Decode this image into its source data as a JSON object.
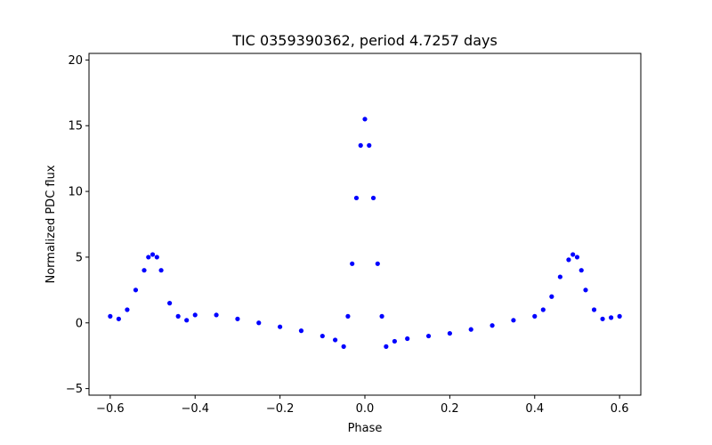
{
  "chart_data": {
    "type": "scatter",
    "title": "TIC 0359390362, period 4.7257 days",
    "xlabel": "Phase",
    "ylabel": "Normalized PDC flux",
    "xlim": [
      -0.65,
      0.65
    ],
    "ylim": [
      -5.5,
      20.5
    ],
    "x_ticks": [
      -0.6,
      -0.4,
      -0.2,
      0.0,
      0.2,
      0.4,
      0.6
    ],
    "x_tick_labels": [
      "−0.6",
      "−0.4",
      "−0.2",
      "0.0",
      "0.2",
      "0.4",
      "0.6"
    ],
    "y_ticks": [
      -5,
      0,
      5,
      10,
      15,
      20
    ],
    "y_tick_labels": [
      "−5",
      "0",
      "5",
      "10",
      "15",
      "20"
    ],
    "marker_color": "#0000ff",
    "grid": false,
    "legend": "none",
    "series": [
      {
        "x": [
          -0.6,
          -0.58,
          -0.56,
          -0.54,
          -0.52,
          -0.51,
          -0.5,
          -0.49,
          -0.48,
          -0.46,
          -0.44,
          -0.42,
          -0.4,
          -0.35,
          -0.3,
          -0.25,
          -0.2,
          -0.15,
          -0.1,
          -0.07,
          -0.05,
          -0.04,
          -0.03,
          -0.02,
          -0.01,
          0.0,
          0.01,
          0.02,
          0.03,
          0.04,
          0.05,
          0.07,
          0.1,
          0.15,
          0.2,
          0.25,
          0.3,
          0.35,
          0.4,
          0.42,
          0.44,
          0.46,
          0.48,
          0.49,
          0.5,
          0.51,
          0.52,
          0.54,
          0.56,
          0.58,
          0.6
        ],
        "y": [
          0.5,
          0.3,
          1.0,
          2.5,
          4.0,
          5.0,
          5.2,
          5.0,
          4.0,
          1.5,
          0.5,
          0.2,
          0.6,
          0.6,
          0.3,
          0.0,
          -0.3,
          -0.6,
          -1.0,
          -1.3,
          -1.8,
          0.5,
          4.5,
          9.5,
          13.5,
          15.5,
          13.5,
          9.5,
          4.5,
          0.5,
          -1.8,
          -1.4,
          -1.2,
          -1.0,
          -0.8,
          -0.5,
          -0.2,
          0.2,
          0.5,
          1.0,
          2.0,
          3.5,
          4.8,
          5.2,
          5.0,
          4.0,
          2.5,
          1.0,
          0.3,
          0.4,
          0.5
        ]
      }
    ],
    "annotations": []
  }
}
